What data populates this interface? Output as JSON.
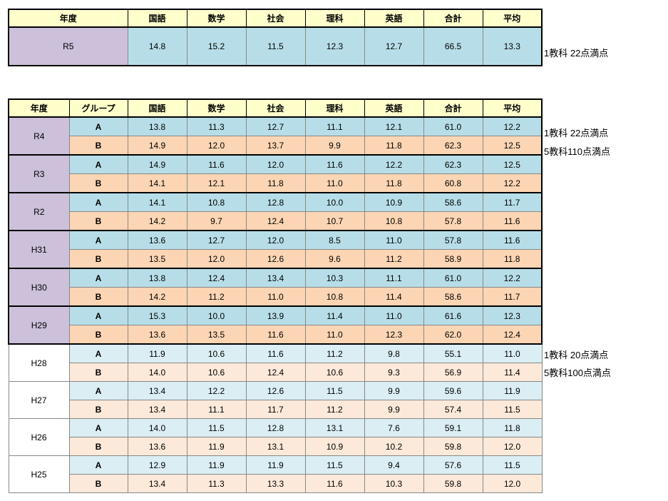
{
  "colors": {
    "header_bg": "#FFFFCC",
    "year_purple": "#CCC0DA",
    "group_a_blue": "#B7DEE8",
    "group_b_peach": "#FCD5B4",
    "group_a_blue_light": "#DAEEF3",
    "group_b_peach_light": "#FDE9D9",
    "grid_gray": "#888888",
    "border_black": "#000000"
  },
  "chart_data": [
    {
      "type": "table",
      "columns": [
        "年度",
        "国語",
        "数学",
        "社会",
        "理科",
        "英語",
        "合計",
        "平均"
      ],
      "rows": [
        {
          "year": "R5",
          "values": [
            "14.8",
            "15.2",
            "11.5",
            "12.3",
            "12.7",
            "66.5",
            "13.3"
          ]
        }
      ],
      "side_note": "1教科 22点満点"
    },
    {
      "type": "table",
      "columns": [
        "年度",
        "グループ",
        "国語",
        "数学",
        "社会",
        "理科",
        "英語",
        "合計",
        "平均"
      ],
      "year_groups": [
        {
          "year": "R4",
          "highlight": true,
          "rows": [
            {
              "group": "A",
              "values": [
                "13.8",
                "11.3",
                "12.7",
                "11.1",
                "12.1",
                "61.0",
                "12.2"
              ]
            },
            {
              "group": "B",
              "values": [
                "14.9",
                "12.0",
                "13.7",
                "9.9",
                "11.8",
                "62.3",
                "12.5"
              ]
            }
          ]
        },
        {
          "year": "R3",
          "highlight": true,
          "rows": [
            {
              "group": "A",
              "values": [
                "14.9",
                "11.6",
                "12.0",
                "11.6",
                "12.2",
                "62.3",
                "12.5"
              ]
            },
            {
              "group": "B",
              "values": [
                "14.1",
                "12.1",
                "11.8",
                "11.0",
                "11.8",
                "60.8",
                "12.2"
              ]
            }
          ]
        },
        {
          "year": "R2",
          "highlight": true,
          "rows": [
            {
              "group": "A",
              "values": [
                "14.1",
                "10.8",
                "12.8",
                "10.0",
                "10.9",
                "58.6",
                "11.7"
              ]
            },
            {
              "group": "B",
              "values": [
                "14.2",
                "9.7",
                "12.4",
                "10.7",
                "10.8",
                "57.8",
                "11.6"
              ]
            }
          ]
        },
        {
          "year": "H31",
          "highlight": true,
          "rows": [
            {
              "group": "A",
              "values": [
                "13.6",
                "12.7",
                "12.0",
                "8.5",
                "11.0",
                "57.8",
                "11.6"
              ]
            },
            {
              "group": "B",
              "values": [
                "13.5",
                "12.0",
                "12.6",
                "9.6",
                "11.2",
                "58.9",
                "11.8"
              ]
            }
          ]
        },
        {
          "year": "H30",
          "highlight": true,
          "rows": [
            {
              "group": "A",
              "values": [
                "13.8",
                "12.4",
                "13.4",
                "10.3",
                "11.1",
                "61.0",
                "12.2"
              ]
            },
            {
              "group": "B",
              "values": [
                "14.2",
                "11.2",
                "11.0",
                "10.8",
                "11.4",
                "58.6",
                "11.7"
              ]
            }
          ]
        },
        {
          "year": "H29",
          "highlight": true,
          "rows": [
            {
              "group": "A",
              "values": [
                "15.3",
                "10.0",
                "13.9",
                "11.4",
                "11.0",
                "61.6",
                "12.3"
              ]
            },
            {
              "group": "B",
              "values": [
                "13.6",
                "13.5",
                "11.6",
                "11.0",
                "12.3",
                "62.0",
                "12.4"
              ]
            }
          ]
        },
        {
          "year": "H28",
          "highlight": false,
          "rows": [
            {
              "group": "A",
              "values": [
                "11.9",
                "10.6",
                "11.6",
                "11.2",
                "9.8",
                "55.1",
                "11.0"
              ]
            },
            {
              "group": "B",
              "values": [
                "14.0",
                "10.6",
                "12.4",
                "10.6",
                "9.3",
                "56.9",
                "11.4"
              ]
            }
          ]
        },
        {
          "year": "H27",
          "highlight": false,
          "rows": [
            {
              "group": "A",
              "values": [
                "13.4",
                "12.2",
                "12.6",
                "11.5",
                "9.9",
                "59.6",
                "11.9"
              ]
            },
            {
              "group": "B",
              "values": [
                "13.4",
                "11.1",
                "11.7",
                "11.2",
                "9.9",
                "57.4",
                "11.5"
              ]
            }
          ]
        },
        {
          "year": "H26",
          "highlight": false,
          "rows": [
            {
              "group": "A",
              "values": [
                "14.0",
                "11.5",
                "12.8",
                "13.1",
                "7.6",
                "59.1",
                "11.8"
              ]
            },
            {
              "group": "B",
              "values": [
                "13.6",
                "11.9",
                "13.1",
                "10.9",
                "10.2",
                "59.8",
                "12.0"
              ]
            }
          ]
        },
        {
          "year": "H25",
          "highlight": false,
          "rows": [
            {
              "group": "A",
              "values": [
                "12.9",
                "11.9",
                "11.9",
                "11.5",
                "9.4",
                "57.6",
                "11.5"
              ]
            },
            {
              "group": "B",
              "values": [
                "13.4",
                "11.3",
                "13.3",
                "11.6",
                "10.3",
                "59.8",
                "12.0"
              ]
            }
          ]
        }
      ],
      "side_notes_r4": [
        "1教科 22点満点",
        "5教科110点満点"
      ],
      "side_notes_h28": [
        "1教科 20点満点",
        "5教科100点満点"
      ]
    }
  ]
}
